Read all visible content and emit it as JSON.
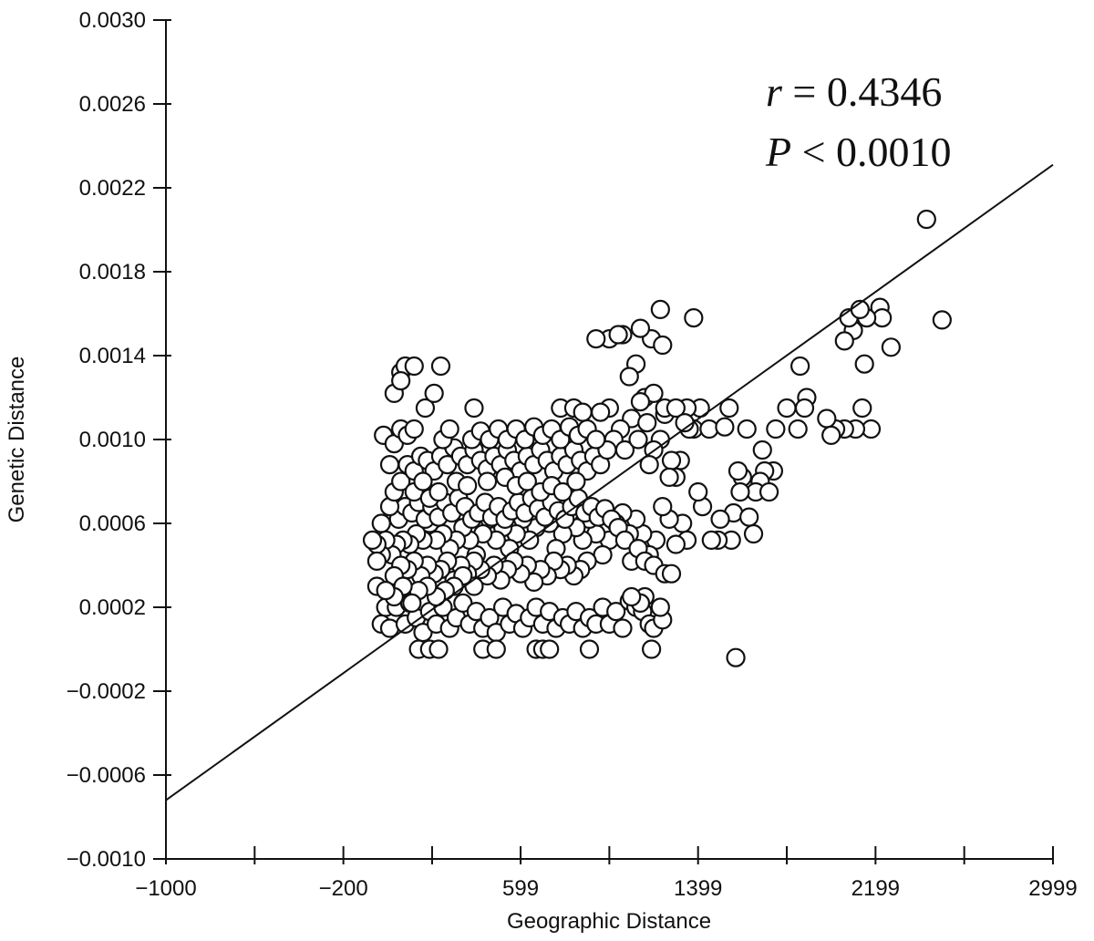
{
  "chart_data": {
    "type": "scatter",
    "xlabel": "Geographic Distance",
    "ylabel": "Genetic Distance",
    "xlim": [
      -1000,
      2999
    ],
    "ylim": [
      -0.001,
      0.003
    ],
    "x_ticks": [
      -1000,
      -600,
      -200,
      200,
      599,
      999,
      1399,
      1799,
      2199,
      2599,
      2999
    ],
    "x_tick_labels": [
      "−1000",
      "",
      "−200",
      "",
      "599",
      "",
      "1399",
      "",
      "2199",
      "",
      "2999"
    ],
    "y_ticks": [
      -0.001,
      -0.0006,
      -0.0002,
      0.0002,
      0.0006,
      0.001,
      0.0014,
      0.0018,
      0.0022,
      0.0026,
      0.003
    ],
    "y_tick_labels": [
      "−0.0010",
      "−0.0006",
      "−0.0002",
      "0.0002",
      "0.0006",
      "0.0010",
      "0.0014",
      "0.0018",
      "0.0022",
      "0.0026",
      "0.0030"
    ],
    "annotation": {
      "r_symbol": "r",
      "r_text": " = 0.4346",
      "p_symbol": "P",
      "p_text": " < 0.0010"
    },
    "regression": {
      "x": [
        -1000,
        2999
      ],
      "y": [
        -0.00072,
        0.00231
      ]
    },
    "grid": false,
    "points": [
      [
        2429,
        0.00205
      ],
      [
        2499,
        0.00157
      ],
      [
        2269,
        0.00144
      ],
      [
        2219,
        0.00163
      ],
      [
        2229,
        0.00158
      ],
      [
        2159,
        0.00158
      ],
      [
        2099,
        0.00152
      ],
      [
        2079,
        0.00158
      ],
      [
        2129,
        0.00162
      ],
      [
        2149,
        0.00136
      ],
      [
        2179,
        0.00105
      ],
      [
        2139,
        0.00115
      ],
      [
        2109,
        0.00105
      ],
      [
        2059,
        0.00105
      ],
      [
        2019,
        0.00105
      ],
      [
        1979,
        0.0011
      ],
      [
        1999,
        0.00102
      ],
      [
        2059,
        0.00147
      ],
      [
        1889,
        0.0012
      ],
      [
        1859,
        0.00135
      ],
      [
        1879,
        0.00115
      ],
      [
        1849,
        0.00105
      ],
      [
        1799,
        0.00115
      ],
      [
        1749,
        0.00105
      ],
      [
        1739,
        0.00085
      ],
      [
        1699,
        0.00085
      ],
      [
        1679,
        0.0008
      ],
      [
        1659,
        0.00075
      ],
      [
        1599,
        0.00082
      ],
      [
        1579,
        0.00085
      ],
      [
        1589,
        0.00075
      ],
      [
        1559,
        0.00065
      ],
      [
        1549,
        0.00052
      ],
      [
        1499,
        0.00062
      ],
      [
        1489,
        0.00052
      ],
      [
        1459,
        0.00052
      ],
      [
        1419,
        0.00068
      ],
      [
        1399,
        0.00075
      ],
      [
        1379,
        0.00105
      ],
      [
        1409,
        0.00115
      ],
      [
        1449,
        0.00105
      ],
      [
        1349,
        0.00115
      ],
      [
        1359,
        0.00105
      ],
      [
        1319,
        0.0009
      ],
      [
        1299,
        0.00082
      ],
      [
        1279,
        0.0009
      ],
      [
        1249,
        0.00112
      ],
      [
        1229,
        0.001
      ],
      [
        1199,
        0.00095
      ],
      [
        1179,
        0.00088
      ],
      [
        1519,
        0.00106
      ],
      [
        1539,
        0.00115
      ],
      [
        1619,
        0.00105
      ],
      [
        1689,
        0.00095
      ],
      [
        1719,
        0.00075
      ],
      [
        1649,
        0.00055
      ],
      [
        1629,
        0.00063
      ],
      [
        1379,
        0.00158
      ],
      [
        1229,
        0.00162
      ],
      [
        1189,
        0.00148
      ],
      [
        1239,
        0.00145
      ],
      [
        1139,
        0.00153
      ],
      [
        1119,
        0.00136
      ],
      [
        1089,
        0.0013
      ],
      [
        999,
        0.00148
      ],
      [
        1059,
        0.0015
      ],
      [
        1039,
        0.0015
      ],
      [
        939,
        0.00148
      ],
      [
        1159,
        0.0012
      ],
      [
        1199,
        0.00122
      ],
      [
        1139,
        0.00118
      ],
      [
        1099,
        0.0011
      ],
      [
        1049,
        0.00105
      ],
      [
        999,
        0.00115
      ],
      [
        959,
        0.00113
      ],
      [
        1019,
        0.001
      ],
      [
        1069,
        0.00095
      ],
      [
        1129,
        0.001
      ],
      [
        1169,
        0.00108
      ],
      [
        1249,
        0.00115
      ],
      [
        1299,
        0.00115
      ],
      [
        1339,
        0.00108
      ],
      [
        1269,
        0.00082
      ],
      [
        1329,
        0.0006
      ],
      [
        1349,
        0.00052
      ],
      [
        1299,
        0.0005
      ],
      [
        1269,
        0.00062
      ],
      [
        1239,
        0.00068
      ],
      [
        1209,
        0.00052
      ],
      [
        1179,
        0.00045
      ],
      [
        1149,
        0.00055
      ],
      [
        1119,
        0.00062
      ],
      [
        1089,
        0.00055
      ],
      [
        1059,
        0.00065
      ],
      [
        1029,
        0.0006
      ],
      [
        999,
        0.00052
      ],
      [
        969,
        0.00045
      ],
      [
        939,
        0.00055
      ],
      [
        909,
        0.00062
      ],
      [
        879,
        0.00052
      ],
      [
        849,
        0.00058
      ],
      [
        819,
        0.00065
      ],
      [
        789,
        0.00055
      ],
      [
        759,
        0.00048
      ],
      [
        729,
        0.0006
      ],
      [
        699,
        0.00068
      ],
      [
        669,
        0.00058
      ],
      [
        639,
        0.00052
      ],
      [
        609,
        0.00062
      ],
      [
        579,
        0.00055
      ],
      [
        549,
        0.00048
      ],
      [
        519,
        0.00058
      ],
      [
        489,
        0.00052
      ],
      [
        459,
        0.00062
      ],
      [
        429,
        0.00055
      ],
      [
        399,
        0.00045
      ],
      [
        369,
        0.00052
      ],
      [
        339,
        0.00058
      ],
      [
        309,
        0.00052
      ],
      [
        279,
        0.00048
      ],
      [
        249,
        0.00055
      ],
      [
        219,
        0.00052
      ],
      [
        189,
        0.0006
      ],
      [
        159,
        0.00052
      ],
      [
        129,
        0.00055
      ],
      [
        99,
        0.0005
      ],
      [
        69,
        0.00052
      ],
      [
        39,
        0.0005
      ],
      [
        19,
        0.00045
      ],
      [
        -9,
        0.00052
      ],
      [
        49,
        0.00062
      ],
      [
        79,
        0.00068
      ],
      [
        109,
        0.00065
      ],
      [
        139,
        0.0007
      ],
      [
        169,
        0.00062
      ],
      [
        199,
        0.00068
      ],
      [
        229,
        0.00063
      ],
      [
        259,
        0.0007
      ],
      [
        289,
        0.00065
      ],
      [
        319,
        0.00072
      ],
      [
        349,
        0.00068
      ],
      [
        379,
        0.00062
      ],
      [
        409,
        0.00065
      ],
      [
        439,
        0.0007
      ],
      [
        469,
        0.00063
      ],
      [
        499,
        0.00068
      ],
      [
        529,
        0.00062
      ],
      [
        559,
        0.00066
      ],
      [
        589,
        0.0007
      ],
      [
        619,
        0.00065
      ],
      [
        649,
        0.00072
      ],
      [
        679,
        0.00067
      ],
      [
        709,
        0.00063
      ],
      [
        739,
        0.0007
      ],
      [
        769,
        0.00066
      ],
      [
        799,
        0.00062
      ],
      [
        829,
        0.00068
      ],
      [
        859,
        0.00072
      ],
      [
        889,
        0.00065
      ],
      [
        919,
        0.00068
      ],
      [
        949,
        0.00063
      ],
      [
        979,
        0.00067
      ],
      [
        1009,
        0.00062
      ],
      [
        1039,
        0.00058
      ],
      [
        1069,
        0.00052
      ],
      [
        1099,
        0.00042
      ],
      [
        1129,
        0.00048
      ],
      [
        1159,
        0.00042
      ],
      [
        1199,
        0.0004
      ],
      [
        1249,
        0.00036
      ],
      [
        1279,
        0.00036
      ],
      [
        899,
        0.00042
      ],
      [
        869,
        0.00038
      ],
      [
        839,
        0.00035
      ],
      [
        809,
        0.0004
      ],
      [
        779,
        0.00038
      ],
      [
        749,
        0.00042
      ],
      [
        719,
        0.00035
      ],
      [
        689,
        0.00038
      ],
      [
        659,
        0.00032
      ],
      [
        629,
        0.0004
      ],
      [
        599,
        0.00036
      ],
      [
        569,
        0.00042
      ],
      [
        539,
        0.00038
      ],
      [
        509,
        0.00033
      ],
      [
        479,
        0.0004
      ],
      [
        449,
        0.00035
      ],
      [
        419,
        0.00038
      ],
      [
        389,
        0.00042
      ],
      [
        359,
        0.00036
      ],
      [
        329,
        0.0004
      ],
      [
        299,
        0.00033
      ],
      [
        269,
        0.00042
      ],
      [
        239,
        0.00038
      ],
      [
        209,
        0.00036
      ],
      [
        179,
        0.0004
      ],
      [
        149,
        0.00035
      ],
      [
        119,
        0.00042
      ],
      [
        89,
        0.00038
      ],
      [
        59,
        0.0004
      ],
      [
        29,
        0.00035
      ],
      [
        -29,
        0.00045
      ],
      [
        -49,
        0.0005
      ],
      [
        -69,
        0.00052
      ],
      [
        -49,
        0.0003
      ],
      [
        -9,
        0.0002
      ],
      [
        -29,
        0.00012
      ],
      [
        9,
        0.0001
      ],
      [
        39,
        0.0002
      ],
      [
        79,
        0.00012
      ],
      [
        99,
        0.00022
      ],
      [
        129,
        0.00015
      ],
      [
        159,
        8e-05
      ],
      [
        189,
        0.00018
      ],
      [
        219,
        0.00012
      ],
      [
        249,
        0.0002
      ],
      [
        279,
        0.0001
      ],
      [
        309,
        0.00015
      ],
      [
        339,
        0.00022
      ],
      [
        369,
        0.00012
      ],
      [
        399,
        0.00018
      ],
      [
        429,
        0.0001
      ],
      [
        459,
        0.00015
      ],
      [
        489,
        8e-05
      ],
      [
        519,
        0.0002
      ],
      [
        549,
        0.00012
      ],
      [
        579,
        0.00017
      ],
      [
        609,
        0.0001
      ],
      [
        639,
        0.00015
      ],
      [
        669,
        0.0002
      ],
      [
        699,
        0.00012
      ],
      [
        729,
        0.00018
      ],
      [
        759,
        0.0001
      ],
      [
        789,
        0.00015
      ],
      [
        819,
        0.00012
      ],
      [
        849,
        0.00018
      ],
      [
        879,
        0.0001
      ],
      [
        909,
        0.00015
      ],
      [
        939,
        0.00012
      ],
      [
        969,
        0.0002
      ],
      [
        999,
        0.00012
      ],
      [
        1029,
        0.00018
      ],
      [
        1059,
        0.0001
      ],
      [
        1089,
        0.00023
      ],
      [
        1119,
        0.0002
      ],
      [
        1149,
        0.00018
      ],
      [
        1179,
        0.00012
      ],
      [
        1199,
        0.0001
      ],
      [
        1239,
        0.00014
      ],
      [
        1229,
        0.0002
      ],
      [
        1159,
        0.00025
      ],
      [
        1139,
        0.00022
      ],
      [
        1099,
        0.00025
      ],
      [
        139,
        0.0
      ],
      [
        189,
        0.0
      ],
      [
        229,
        0.0
      ],
      [
        429,
        0.0
      ],
      [
        489,
        0.0
      ],
      [
        669,
        0.0
      ],
      [
        699,
        0.0
      ],
      [
        729,
        0.0
      ],
      [
        909,
        0.0
      ],
      [
        1189,
        0.0
      ],
      [
        1569,
        -4e-05
      ],
      [
        389,
        0.0003
      ],
      [
        339,
        0.00035
      ],
      [
        299,
        0.0003
      ],
      [
        259,
        0.00028
      ],
      [
        219,
        0.00025
      ],
      [
        179,
        0.0003
      ],
      [
        139,
        0.00028
      ],
      [
        109,
        0.00022
      ],
      [
        69,
        0.0003
      ],
      [
        29,
        0.00025
      ],
      [
        -9,
        0.00028
      ],
      [
        -49,
        0.00042
      ],
      [
        -29,
        0.0006
      ],
      [
        9,
        0.00068
      ],
      [
        29,
        0.00075
      ],
      [
        59,
        0.0008
      ],
      [
        89,
        0.00088
      ],
      [
        119,
        0.00085
      ],
      [
        149,
        0.00092
      ],
      [
        179,
        0.0009
      ],
      [
        209,
        0.00085
      ],
      [
        239,
        0.00092
      ],
      [
        269,
        0.00088
      ],
      [
        299,
        0.00096
      ],
      [
        329,
        0.00092
      ],
      [
        359,
        0.00088
      ],
      [
        389,
        0.00095
      ],
      [
        419,
        0.0009
      ],
      [
        449,
        0.00086
      ],
      [
        479,
        0.00092
      ],
      [
        509,
        0.00088
      ],
      [
        539,
        0.00095
      ],
      [
        569,
        0.0009
      ],
      [
        599,
        0.00085
      ],
      [
        629,
        0.00092
      ],
      [
        659,
        0.00088
      ],
      [
        689,
        0.00095
      ],
      [
        719,
        0.0009
      ],
      [
        749,
        0.00085
      ],
      [
        779,
        0.00092
      ],
      [
        809,
        0.00088
      ],
      [
        839,
        0.00095
      ],
      [
        869,
        0.0009
      ],
      [
        899,
        0.00085
      ],
      [
        929,
        0.00092
      ],
      [
        959,
        0.00088
      ],
      [
        989,
        0.00095
      ],
      [
        9,
        0.00088
      ],
      [
        -19,
        0.00102
      ],
      [
        29,
        0.00098
      ],
      [
        59,
        0.00105
      ],
      [
        89,
        0.00102
      ],
      [
        119,
        0.00105
      ],
      [
        249,
        0.001
      ],
      [
        279,
        0.00105
      ],
      [
        379,
        0.001
      ],
      [
        419,
        0.00104
      ],
      [
        459,
        0.001
      ],
      [
        499,
        0.00105
      ],
      [
        539,
        0.001
      ],
      [
        579,
        0.00105
      ],
      [
        619,
        0.001
      ],
      [
        659,
        0.00106
      ],
      [
        699,
        0.00102
      ],
      [
        739,
        0.00105
      ],
      [
        779,
        0.001
      ],
      [
        819,
        0.00106
      ],
      [
        859,
        0.00102
      ],
      [
        899,
        0.00105
      ],
      [
        939,
        0.001
      ],
      [
        29,
        0.00122
      ],
      [
        59,
        0.00132
      ],
      [
        79,
        0.00135
      ],
      [
        59,
        0.00128
      ],
      [
        119,
        0.00135
      ],
      [
        169,
        0.00115
      ],
      [
        209,
        0.00122
      ],
      [
        239,
        0.00135
      ],
      [
        389,
        0.00115
      ],
      [
        779,
        0.00115
      ],
      [
        839,
        0.00115
      ],
      [
        879,
        0.00113
      ],
      [
        309,
        0.0008
      ],
      [
        359,
        0.00078
      ],
      [
        449,
        0.0008
      ],
      [
        529,
        0.00082
      ],
      [
        579,
        0.00078
      ],
      [
        629,
        0.0008
      ],
      [
        689,
        0.00075
      ],
      [
        739,
        0.00078
      ],
      [
        789,
        0.00075
      ],
      [
        849,
        0.0008
      ],
      [
        119,
        0.00075
      ],
      [
        159,
        0.0008
      ],
      [
        189,
        0.00072
      ],
      [
        229,
        0.00075
      ]
    ]
  }
}
